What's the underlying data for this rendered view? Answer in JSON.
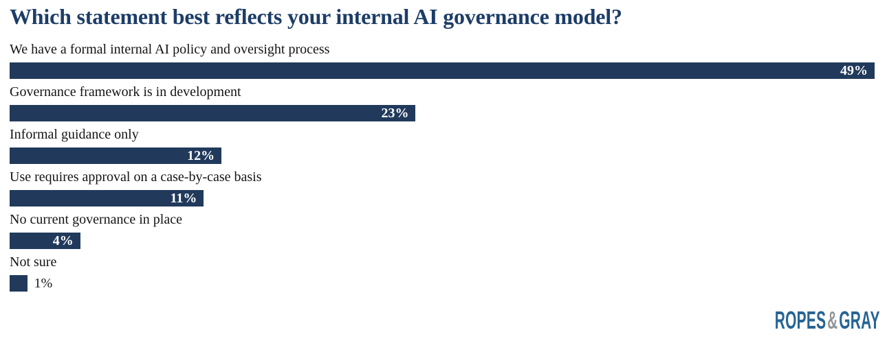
{
  "chart_data": {
    "type": "bar",
    "orientation": "horizontal",
    "title": "Which statement best reflects your internal AI governance model?",
    "categories": [
      "We have a formal internal AI policy and oversight process",
      "Governance framework is in development",
      "Informal guidance only",
      "Use requires approval on a case-by-case basis",
      "No current governance in place",
      "Not sure"
    ],
    "values": [
      49,
      23,
      12,
      11,
      4,
      1
    ],
    "value_labels": [
      "49%",
      "23%",
      "12%",
      "11%",
      "4%",
      "1%"
    ],
    "xlim": [
      0,
      49
    ],
    "grid": false,
    "legend": false,
    "bar_color": "#213a5c",
    "title_color": "#1d3d68",
    "label_color": "#141414",
    "value_label_inside_color": "#ffffff"
  },
  "branding": {
    "logo_ropes": "ROPES",
    "logo_amp": "&",
    "logo_gray_word": "GRAY",
    "logo_blue": "#266494",
    "logo_amp_color": "#939598"
  }
}
